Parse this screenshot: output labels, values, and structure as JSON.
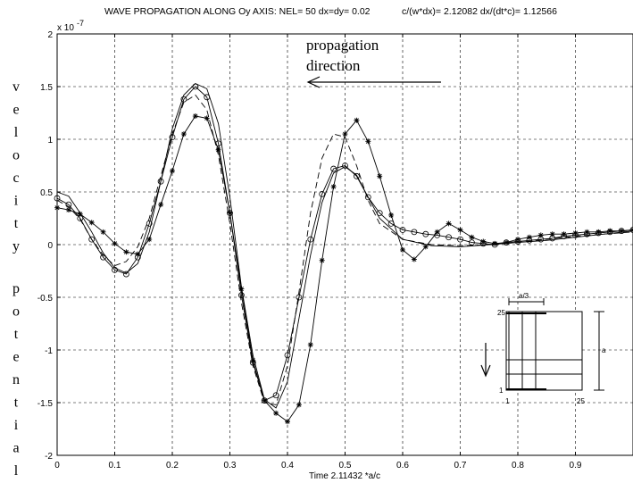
{
  "header": {
    "title": "WAVE PROPAGATION ALONG Oy AXIS: NEL= 50  dx=dy= 0.02",
    "ratios": "c/(w*dx)= 2.12082 dx/(dt*c)= 1.12566"
  },
  "annotations": {
    "propagation_line1": "propagation",
    "propagation_line2": "direction",
    "ylabel_word1": "velocity",
    "ylabel_word2": "potential",
    "exponent_base": "x 10",
    "exponent_power": "-7"
  },
  "inset": {
    "top_label": "a/3",
    "side_label": "a",
    "row_top": "25",
    "row_bottom": "1",
    "col_left": "1",
    "col_right": "25"
  },
  "chart_data": {
    "type": "line",
    "title": "WAVE PROPAGATION ALONG Oy AXIS: NEL= 50  dx=dy= 0.02",
    "xlabel": "Time 2.11432 *a/c",
    "ylabel": "velocity potential",
    "y_multiplier": "x 10^-7",
    "xlim": [
      0,
      1
    ],
    "ylim": [
      -2,
      2
    ],
    "grid": true,
    "xticks": [
      "0",
      "0.1",
      "0.2",
      "0.3",
      "0.4",
      "0.5",
      "0.6",
      "0.7",
      "0.8",
      "0.9"
    ],
    "yticks": [
      "2",
      "1.5",
      "1",
      "0.5",
      "0",
      "-0.5",
      "-1",
      "-1.5",
      "-2"
    ],
    "xtick_values": [
      0,
      0.1,
      0.2,
      0.3,
      0.4,
      0.5,
      0.6,
      0.7,
      0.8,
      0.9
    ],
    "ytick_values": [
      2,
      1.5,
      1,
      0.5,
      0,
      -0.5,
      -1,
      -1.5,
      -2
    ],
    "series": [
      {
        "style": "solid",
        "marker": "none",
        "x": [
          0,
          0.02,
          0.04,
          0.06,
          0.08,
          0.1,
          0.12,
          0.14,
          0.16,
          0.18,
          0.2,
          0.22,
          0.24,
          0.26,
          0.28,
          0.3,
          0.32,
          0.34,
          0.36,
          0.38,
          0.4,
          0.42,
          0.44,
          0.46,
          0.48,
          0.5,
          0.52,
          0.54,
          0.56,
          0.6,
          0.65,
          0.7,
          0.75,
          0.8,
          0.85,
          0.9,
          0.95,
          1.0
        ],
        "y": [
          0.5,
          0.46,
          0.3,
          0.12,
          -0.08,
          -0.22,
          -0.27,
          -0.18,
          0.12,
          0.6,
          1.1,
          1.42,
          1.53,
          1.48,
          1.15,
          0.45,
          -0.4,
          -1.05,
          -1.47,
          -1.55,
          -1.3,
          -0.7,
          -0.1,
          0.4,
          0.68,
          0.74,
          0.66,
          0.45,
          0.25,
          0.05,
          -0.01,
          -0.02,
          0.0,
          0.02,
          0.04,
          0.07,
          0.1,
          0.13
        ]
      },
      {
        "style": "solid",
        "marker": "circle",
        "x": [
          0,
          0.02,
          0.04,
          0.06,
          0.08,
          0.1,
          0.12,
          0.14,
          0.16,
          0.18,
          0.2,
          0.22,
          0.24,
          0.26,
          0.28,
          0.3,
          0.32,
          0.34,
          0.36,
          0.38,
          0.4,
          0.42,
          0.44,
          0.46,
          0.48,
          0.5,
          0.52,
          0.54,
          0.56,
          0.58,
          0.6,
          0.62,
          0.64,
          0.66,
          0.68,
          0.7,
          0.72,
          0.74,
          0.76,
          0.78,
          0.8,
          0.82,
          0.84,
          0.86,
          0.88,
          0.9,
          0.92,
          0.94,
          0.96,
          0.98,
          1.0
        ],
        "y": [
          0.44,
          0.38,
          0.25,
          0.05,
          -0.12,
          -0.24,
          -0.28,
          -0.12,
          0.2,
          0.6,
          1.02,
          1.38,
          1.5,
          1.4,
          0.96,
          0.3,
          -0.48,
          -1.12,
          -1.48,
          -1.43,
          -1.05,
          -0.5,
          0.05,
          0.48,
          0.72,
          0.75,
          0.65,
          0.45,
          0.3,
          0.2,
          0.14,
          0.12,
          0.1,
          0.09,
          0.07,
          0.05,
          0.02,
          0.01,
          0.0,
          0.02,
          0.03,
          0.04,
          0.05,
          0.06,
          0.08,
          0.09,
          0.1,
          0.11,
          0.12,
          0.13,
          0.14
        ]
      },
      {
        "style": "dashed",
        "marker": "none",
        "x": [
          0,
          0.02,
          0.04,
          0.06,
          0.08,
          0.1,
          0.12,
          0.14,
          0.16,
          0.18,
          0.2,
          0.22,
          0.24,
          0.26,
          0.28,
          0.3,
          0.32,
          0.34,
          0.36,
          0.38,
          0.4,
          0.42,
          0.44,
          0.46,
          0.48,
          0.5,
          0.52,
          0.54,
          0.56,
          0.6,
          0.65,
          0.7,
          0.75,
          0.8,
          0.85,
          0.9,
          0.95,
          1.0
        ],
        "y": [
          0.42,
          0.36,
          0.24,
          0.05,
          -0.1,
          -0.2,
          -0.16,
          -0.02,
          0.25,
          0.65,
          1.05,
          1.35,
          1.42,
          1.28,
          0.85,
          0.2,
          -0.55,
          -1.15,
          -1.5,
          -1.52,
          -1.15,
          -0.45,
          0.3,
          0.82,
          1.05,
          1.02,
          0.75,
          0.42,
          0.2,
          0.05,
          0.0,
          -0.01,
          0.0,
          0.02,
          0.05,
          0.08,
          0.1,
          0.12
        ]
      },
      {
        "style": "solid",
        "marker": "star",
        "x": [
          0,
          0.02,
          0.04,
          0.06,
          0.08,
          0.1,
          0.12,
          0.14,
          0.16,
          0.18,
          0.2,
          0.22,
          0.24,
          0.26,
          0.28,
          0.3,
          0.32,
          0.34,
          0.36,
          0.38,
          0.4,
          0.42,
          0.44,
          0.46,
          0.48,
          0.5,
          0.52,
          0.54,
          0.56,
          0.58,
          0.6,
          0.62,
          0.64,
          0.66,
          0.68,
          0.7,
          0.72,
          0.74,
          0.76,
          0.78,
          0.8,
          0.82,
          0.84,
          0.86,
          0.88,
          0.9,
          0.92,
          0.94,
          0.96,
          0.98,
          1.0
        ],
        "y": [
          0.35,
          0.33,
          0.29,
          0.21,
          0.12,
          0.01,
          -0.07,
          -0.09,
          0.05,
          0.38,
          0.7,
          1.05,
          1.22,
          1.2,
          0.9,
          0.3,
          -0.42,
          -1.1,
          -1.48,
          -1.6,
          -1.68,
          -1.52,
          -0.95,
          -0.15,
          0.55,
          1.05,
          1.18,
          0.98,
          0.65,
          0.28,
          -0.05,
          -0.14,
          -0.02,
          0.12,
          0.2,
          0.14,
          0.07,
          0.03,
          0.01,
          0.02,
          0.05,
          0.07,
          0.09,
          0.1,
          0.1,
          0.11,
          0.12,
          0.12,
          0.13,
          0.13,
          0.14
        ]
      }
    ]
  }
}
